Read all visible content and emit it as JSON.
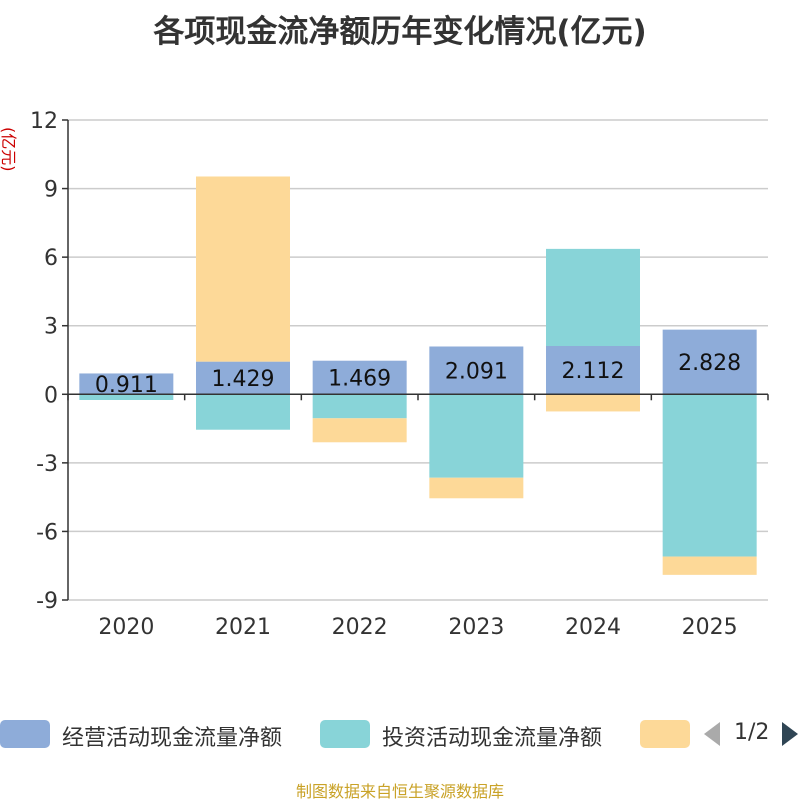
{
  "chart_data": {
    "type": "bar",
    "stacked": true,
    "title": "各项现金流净额历年变化情况(亿元)",
    "ylabel": "(亿元)",
    "xlabel": "",
    "ylim": [
      -9,
      12
    ],
    "yticks": [
      12,
      9,
      6,
      3,
      0,
      -3,
      -6,
      -9
    ],
    "grid": true,
    "categories": [
      "2020",
      "2021",
      "2022",
      "2023",
      "2024",
      "2025"
    ],
    "series": [
      {
        "name": "经营活动现金流量净额",
        "color": "#8eacd9",
        "values": [
          0.911,
          1.429,
          1.469,
          2.091,
          2.112,
          2.828
        ],
        "labels": [
          "0.911",
          "1.429",
          "1.469",
          "2.091",
          "2.112",
          "2.828"
        ]
      },
      {
        "name": "投资活动现金流量净额",
        "color": "#88d4d8",
        "values": [
          -0.25,
          -1.55,
          -1.05,
          -3.65,
          4.25,
          -7.1
        ]
      },
      {
        "name": "",
        "color": "#fdd998",
        "values": [
          0,
          8.1,
          -1.05,
          -0.9,
          -0.75,
          -0.8
        ]
      }
    ],
    "legend_position": "bottom"
  },
  "legend": {
    "page": "1/2"
  },
  "source": "制图数据来自恒生聚源数据库",
  "icons": {
    "prev": "caret-left-icon",
    "next": "caret-right-icon"
  }
}
